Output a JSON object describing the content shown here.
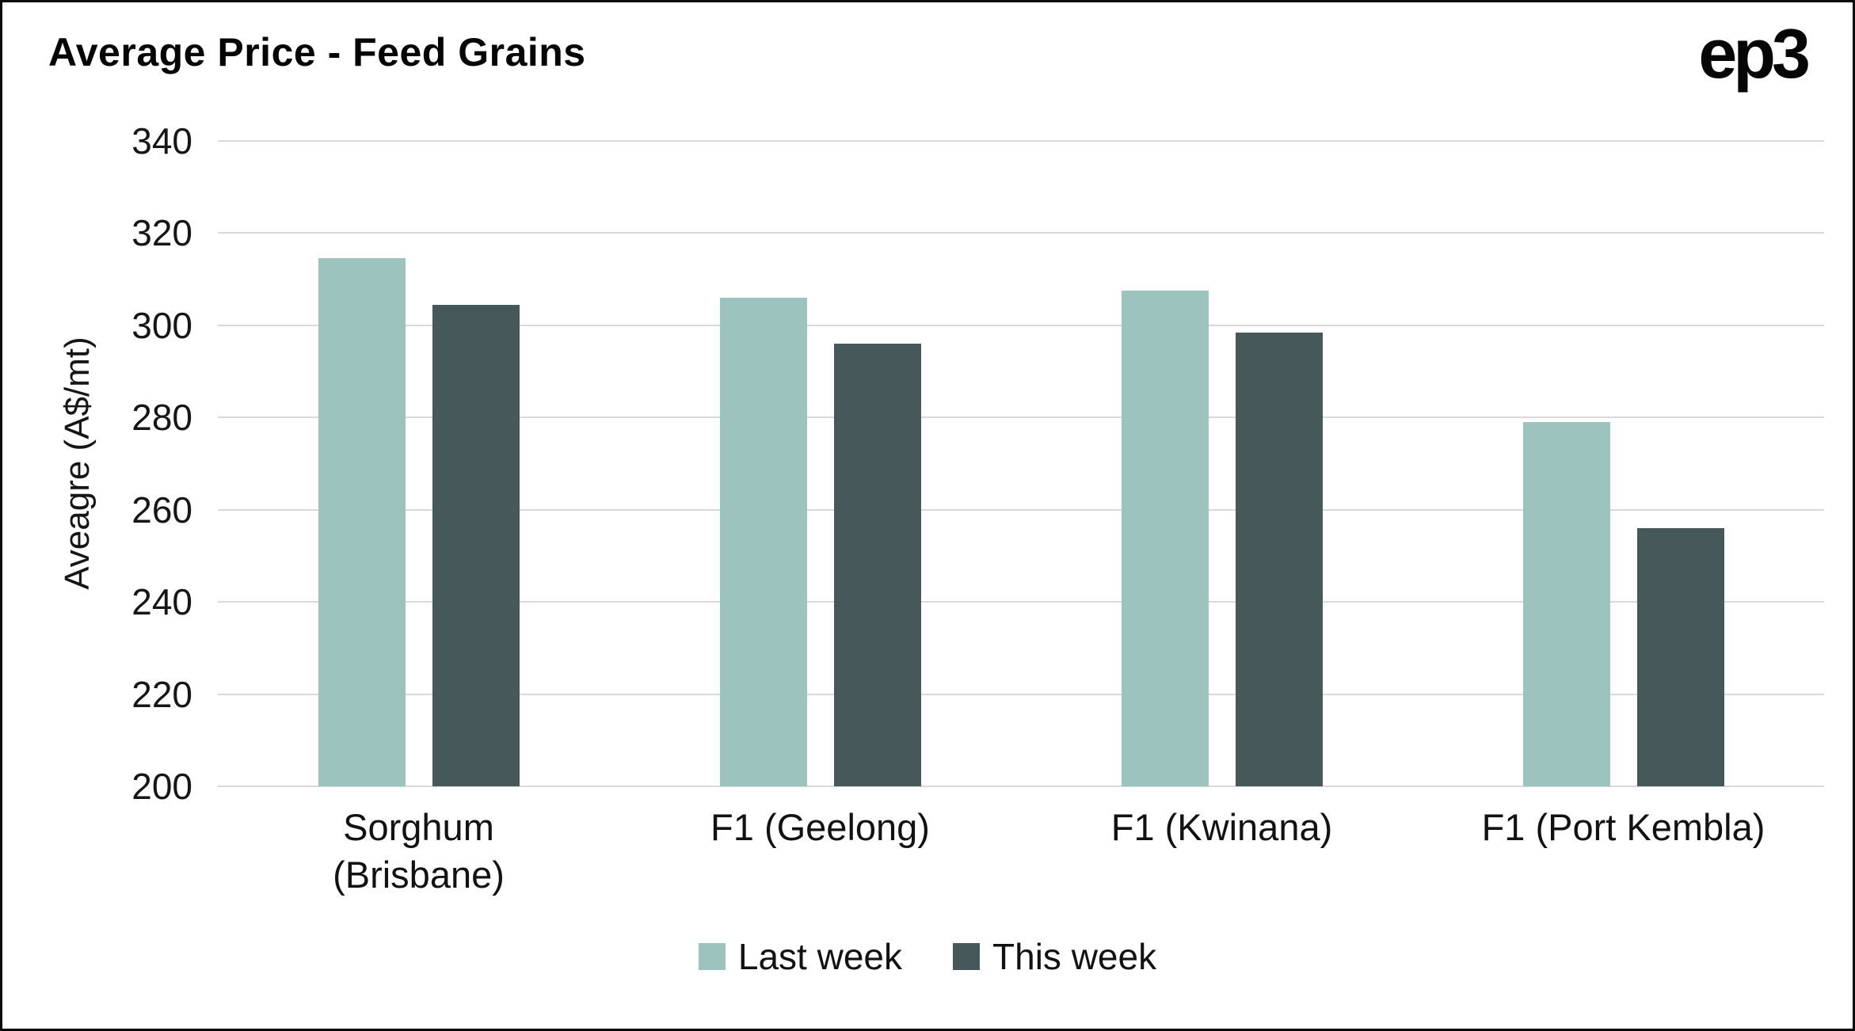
{
  "header": {
    "title": "Average Price - Feed Grains",
    "logo": "ep3"
  },
  "chart_data": {
    "type": "bar",
    "title": "Average Price - Feed Grains",
    "xlabel": "",
    "ylabel": "Aveagre (A$/mt)",
    "ylim": [
      200,
      340
    ],
    "yticks": [
      200,
      220,
      240,
      260,
      280,
      300,
      320,
      340
    ],
    "grid": true,
    "legend_position": "bottom",
    "categories": [
      "Sorghum\n(Brisbane)",
      "F1 (Geelong)",
      "F1 (Kwinana)",
      "F1 (Port Kembla)"
    ],
    "series": [
      {
        "name": "Last week",
        "color": "#9dc3bf",
        "values": [
          314.5,
          306,
          307.5,
          279
        ]
      },
      {
        "name": "This week",
        "color": "#47585a",
        "values": [
          304.5,
          296,
          298.5,
          256
        ]
      }
    ]
  }
}
